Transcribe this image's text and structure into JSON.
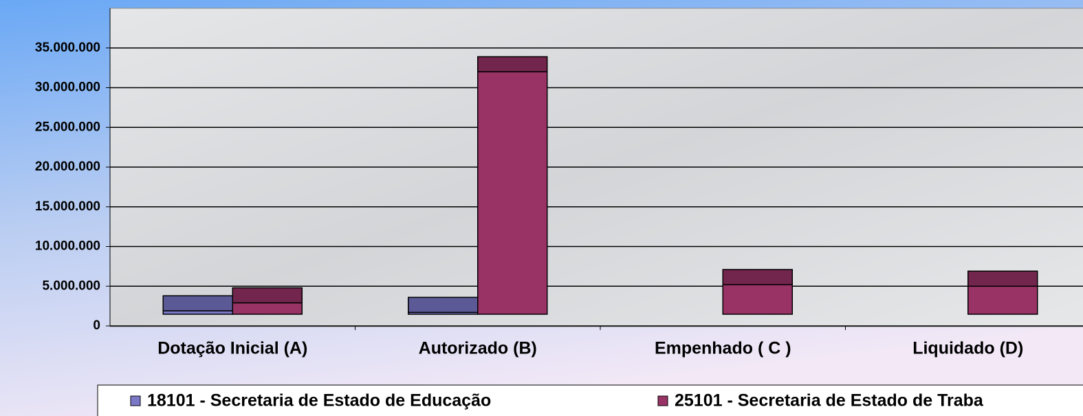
{
  "chart_data": {
    "type": "bar",
    "categories": [
      "Dotação Inicial (A)",
      "Autorizado (B)",
      "Empenhado ( C )",
      "Liquidado (D)"
    ],
    "series": [
      {
        "name": "18101 - Secretaria de Estado de Educação",
        "color": "#7b78c8",
        "values": [
          3800000,
          3600000,
          0,
          0
        ]
      },
      {
        "name": "25101 - Secretaria de Estado de Traba",
        "color": "#993366",
        "values": [
          4800000,
          33900000,
          7100000,
          6900000
        ]
      }
    ],
    "ylim": [
      0,
      40000000
    ],
    "yticks": [
      {
        "value": 0,
        "label": "0"
      },
      {
        "value": 5000000,
        "label": "5.000.000"
      },
      {
        "value": 10000000,
        "label": "10.000.000"
      },
      {
        "value": 15000000,
        "label": "15.000.000"
      },
      {
        "value": 20000000,
        "label": "20.000.000"
      },
      {
        "value": 25000000,
        "label": "25.000.000"
      },
      {
        "value": 30000000,
        "label": "30.000.000"
      },
      {
        "value": 35000000,
        "label": "35.000.000"
      }
    ],
    "grid": true
  }
}
